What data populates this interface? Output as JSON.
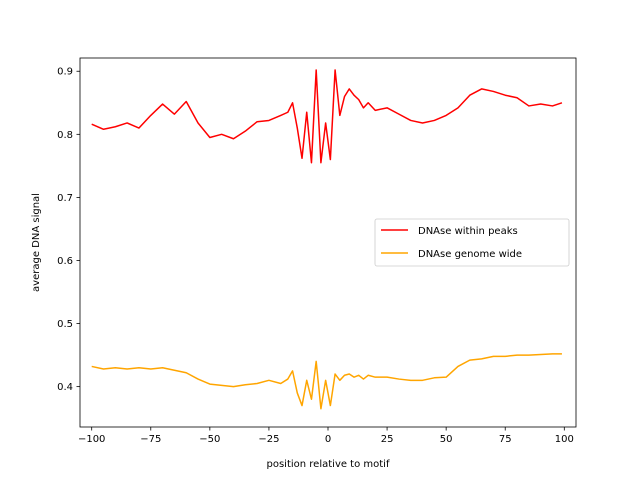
{
  "chart_data": {
    "type": "line",
    "title": "",
    "xlabel": "position relative to motif",
    "ylabel": "average DNA signal",
    "xlim": [
      -104.95,
      104.95
    ],
    "ylim": [
      0.336,
      0.921
    ],
    "xticks": [
      -100,
      -75,
      -50,
      -25,
      0,
      25,
      50,
      75,
      100
    ],
    "xtick_labels": [
      "−100",
      "−75",
      "−50",
      "−25",
      "0",
      "25",
      "50",
      "75",
      "100"
    ],
    "yticks": [
      0.4,
      0.5,
      0.6,
      0.7,
      0.8,
      0.9
    ],
    "ytick_labels": [
      "0.4",
      "0.5",
      "0.6",
      "0.7",
      "0.8",
      "0.9"
    ],
    "grid": false,
    "legend_position": "center-right",
    "series": [
      {
        "name": "DNAse within peaks",
        "color": "#ff0000",
        "x": [
          -100,
          -95,
          -90,
          -85,
          -80,
          -75,
          -70,
          -65,
          -60,
          -55,
          -50,
          -45,
          -40,
          -35,
          -30,
          -25,
          -20,
          -17,
          -15,
          -13,
          -11,
          -9,
          -7,
          -5,
          -3,
          -1,
          1,
          3,
          5,
          7,
          9,
          11,
          13,
          15,
          17,
          20,
          25,
          30,
          35,
          40,
          45,
          50,
          55,
          60,
          65,
          70,
          75,
          80,
          85,
          90,
          95,
          99
        ],
        "y": [
          0.816,
          0.808,
          0.812,
          0.818,
          0.81,
          0.83,
          0.848,
          0.832,
          0.852,
          0.818,
          0.795,
          0.8,
          0.793,
          0.805,
          0.82,
          0.822,
          0.83,
          0.835,
          0.85,
          0.81,
          0.762,
          0.835,
          0.755,
          0.902,
          0.755,
          0.818,
          0.76,
          0.902,
          0.83,
          0.86,
          0.872,
          0.862,
          0.855,
          0.842,
          0.85,
          0.838,
          0.842,
          0.832,
          0.822,
          0.818,
          0.822,
          0.83,
          0.842,
          0.862,
          0.872,
          0.868,
          0.862,
          0.858,
          0.845,
          0.848,
          0.845,
          0.85
        ]
      },
      {
        "name": "DNAse genome wide",
        "color": "#ffa500",
        "x": [
          -100,
          -95,
          -90,
          -85,
          -80,
          -75,
          -70,
          -65,
          -60,
          -55,
          -50,
          -45,
          -40,
          -35,
          -30,
          -25,
          -20,
          -17,
          -15,
          -13,
          -11,
          -9,
          -7,
          -5,
          -3,
          -1,
          1,
          3,
          5,
          7,
          9,
          11,
          13,
          15,
          17,
          20,
          25,
          30,
          35,
          40,
          45,
          50,
          55,
          60,
          65,
          70,
          75,
          80,
          85,
          90,
          95,
          99
        ],
        "y": [
          0.432,
          0.428,
          0.43,
          0.428,
          0.43,
          0.428,
          0.43,
          0.426,
          0.422,
          0.412,
          0.404,
          0.402,
          0.4,
          0.403,
          0.405,
          0.41,
          0.405,
          0.412,
          0.425,
          0.39,
          0.37,
          0.41,
          0.38,
          0.44,
          0.365,
          0.41,
          0.37,
          0.42,
          0.41,
          0.418,
          0.42,
          0.415,
          0.418,
          0.412,
          0.418,
          0.415,
          0.415,
          0.412,
          0.41,
          0.41,
          0.414,
          0.415,
          0.432,
          0.442,
          0.444,
          0.448,
          0.448,
          0.45,
          0.45,
          0.451,
          0.452,
          0.452
        ]
      }
    ]
  }
}
